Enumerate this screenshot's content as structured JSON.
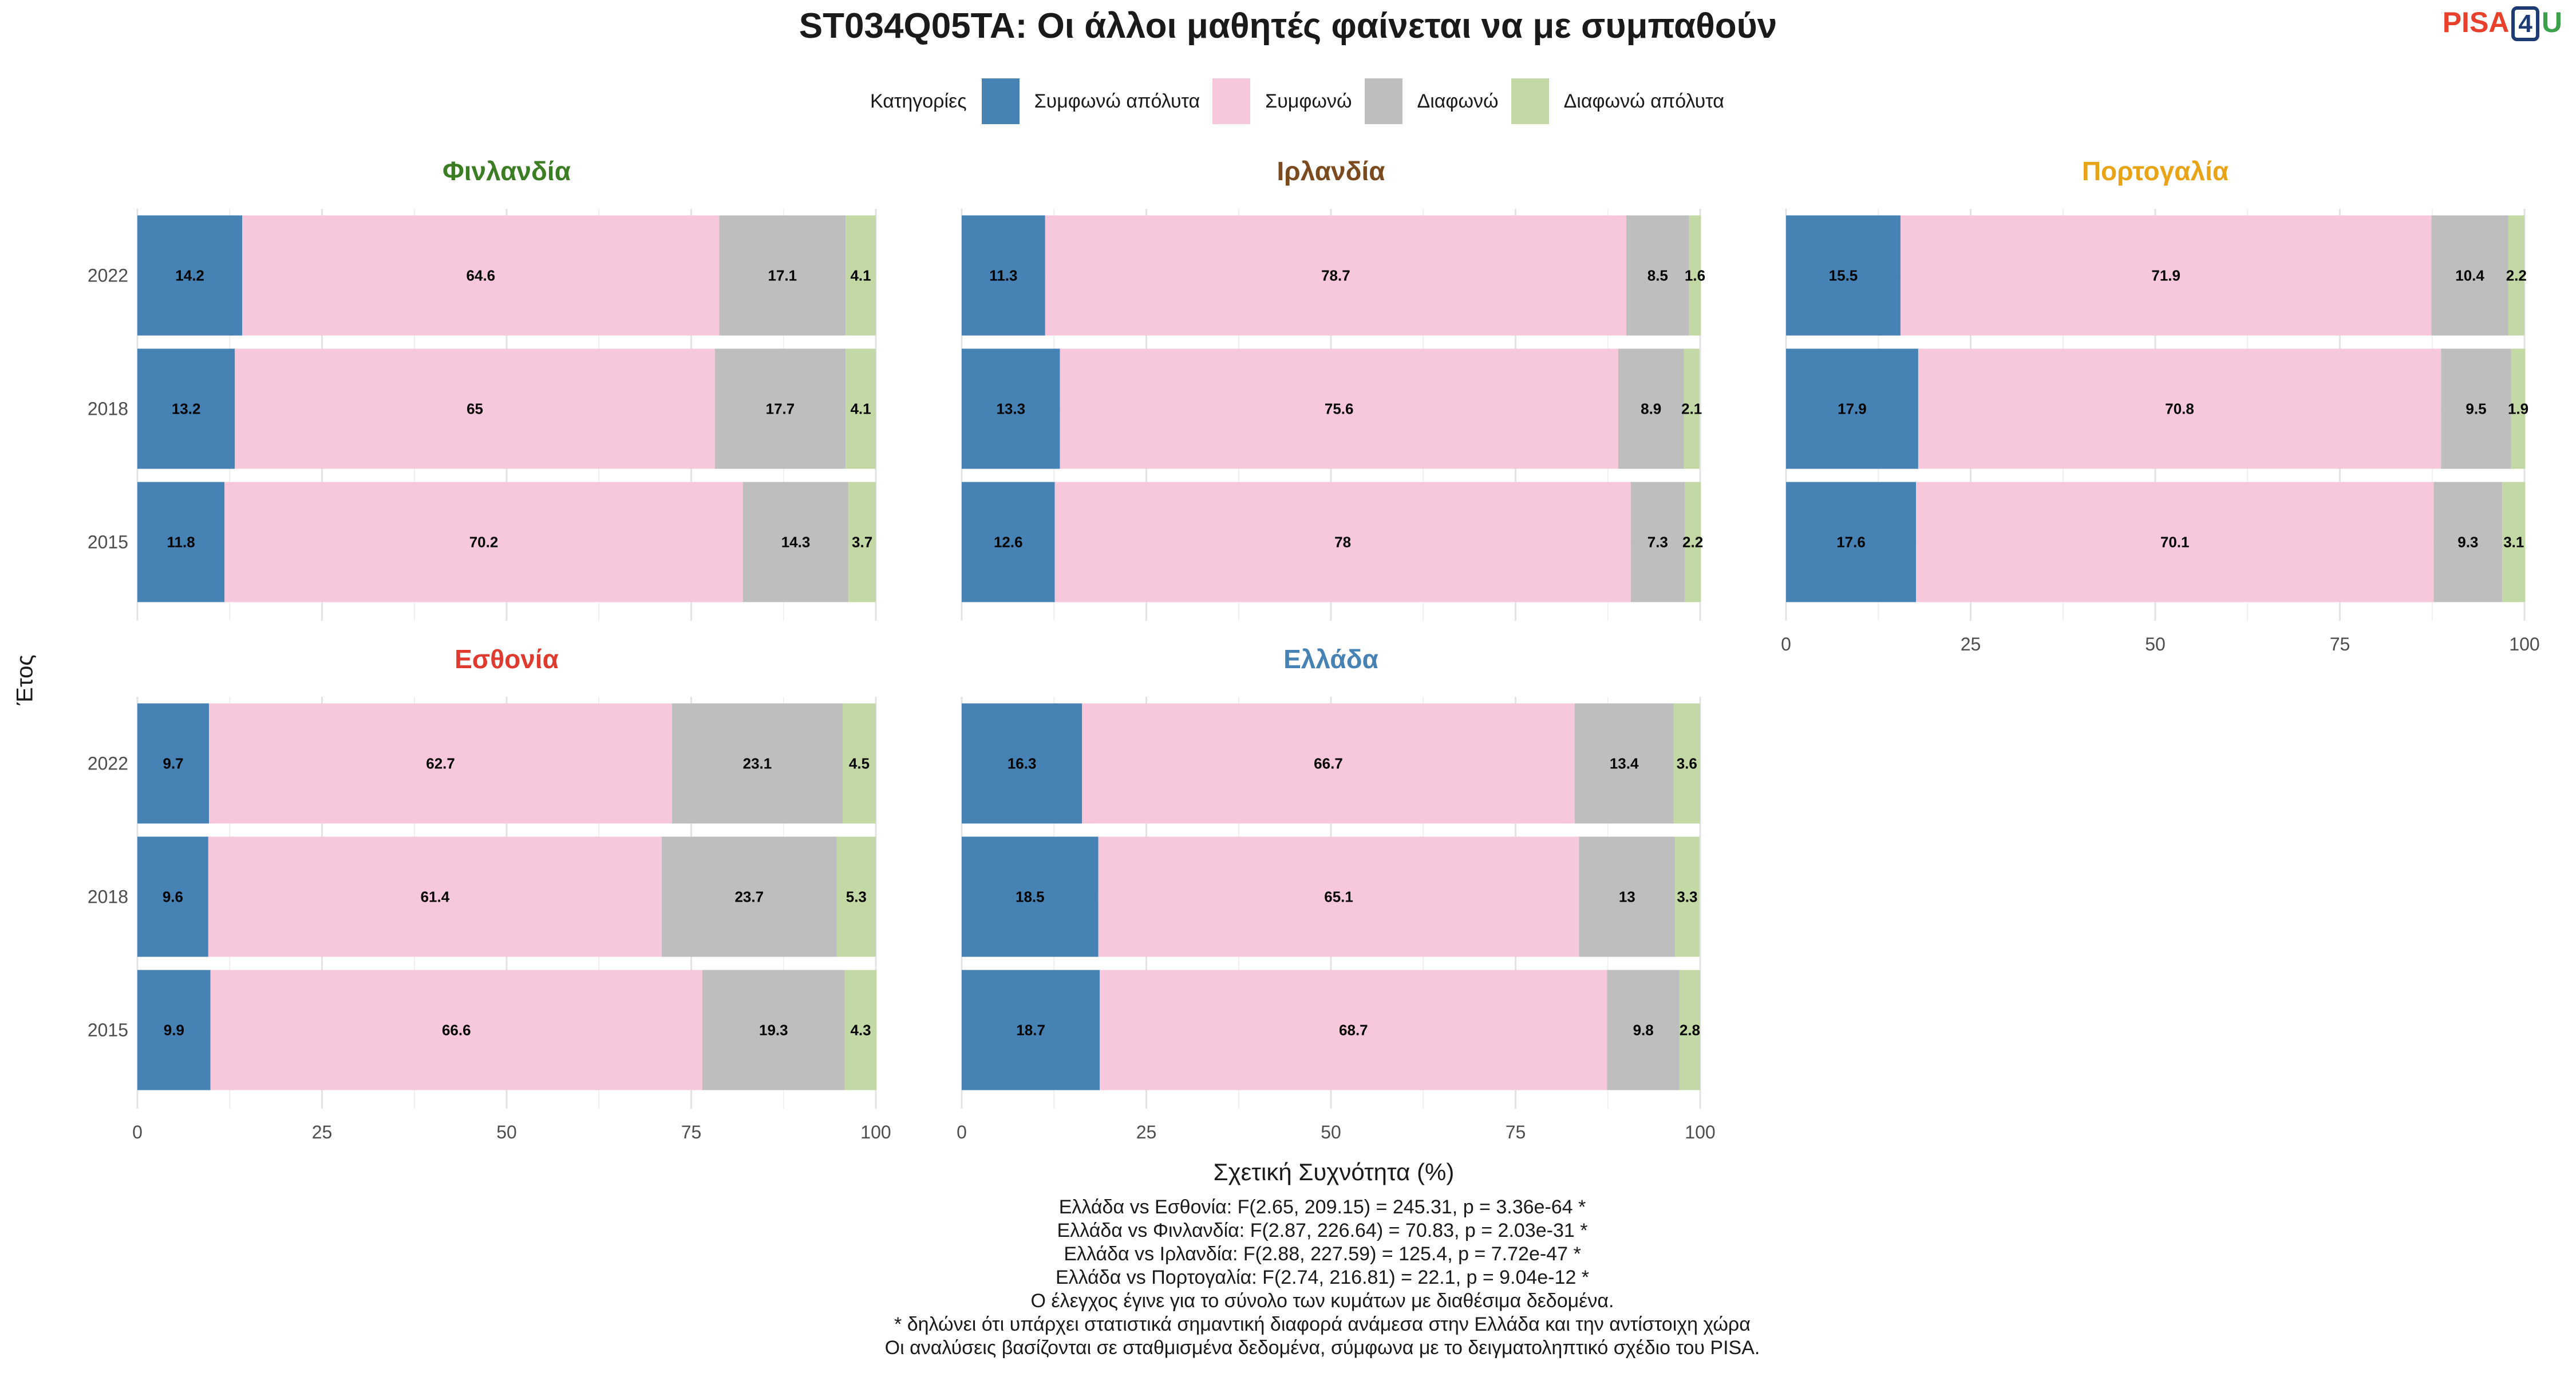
{
  "title": "ST034Q05TA: Οι άλλοι μαθητές φαίνεται να με συμπαθούν",
  "logo": {
    "part1": "PISA",
    "part2": "4",
    "part3": "U"
  },
  "legend": {
    "title": "Κατηγορίες",
    "items": [
      {
        "label": "Συμφωνώ απόλυτα",
        "color": "#4682B4"
      },
      {
        "label": "Συμφωνώ",
        "color": "#F7C8DC"
      },
      {
        "label": "Διαφωνώ",
        "color": "#BEBEBE"
      },
      {
        "label": "Διαφωνώ απόλυτα",
        "color": "#C3D9A5"
      }
    ]
  },
  "axes": {
    "ylabel": "Έτος",
    "xlabel": "Σχετική Συχνότητα (%)"
  },
  "caption": [
    "Ελλάδα vs Εσθονία: F(2.65, 209.15) = 245.31, p = 3.36e-64 *",
    "Ελλάδα vs Φινλανδία: F(2.87, 226.64) = 70.83, p = 2.03e-31 *",
    "Ελλάδα vs Ιρλανδία: F(2.88, 227.59) = 125.4, p = 7.72e-47 *",
    "Ελλάδα vs Πορτογαλία: F(2.74, 216.81) = 22.1, p = 9.04e-12 *",
    "Ο έλεγχος έγινε για το σύνολο των κυμάτων με διαθέσιμα δεδομένα.",
    "* δηλώνει ότι υπάρχει στατιστικά σημαντική διαφορά ανάμεσα στην Ελλάδα και την αντίστοιχη χώρα",
    "Οι αναλύσεις βασίζονται σε σταθμισμένα δεδομένα, σύμφωνα με το δειγματοληπτικό σχέδιο του PISA."
  ],
  "chart_data": {
    "type": "bar",
    "orientation": "horizontal",
    "stacked": true,
    "xlim": [
      0,
      100
    ],
    "x_ticks": [
      "0",
      "25",
      "50",
      "75",
      "100"
    ],
    "categories": [
      "2022",
      "2018",
      "2015"
    ],
    "series_names": [
      "Συμφωνώ απόλυτα",
      "Συμφωνώ",
      "Διαφωνώ",
      "Διαφωνώ απόλυτα"
    ],
    "facets": [
      {
        "country": "Φινλανδία",
        "title_color": "#3B7D23",
        "rows": [
          {
            "year": "2022",
            "values": [
              14.2,
              64.6,
              17.1,
              4.1
            ],
            "labels": [
              "14.2",
              "64.6",
              "17.1",
              "4.1"
            ]
          },
          {
            "year": "2018",
            "values": [
              13.2,
              65,
              17.7,
              4.1
            ],
            "labels": [
              "13.2",
              "65",
              "17.7",
              "4.1"
            ]
          },
          {
            "year": "2015",
            "values": [
              11.8,
              70.2,
              14.3,
              3.7
            ],
            "labels": [
              "11.8",
              "70.2",
              "14.3",
              "3.7"
            ]
          }
        ]
      },
      {
        "country": "Ιρλανδία",
        "title_color": "#7B4A1E",
        "rows": [
          {
            "year": "2022",
            "values": [
              11.3,
              78.7,
              8.5,
              1.6
            ],
            "labels": [
              "11.3",
              "78.7",
              "8.5",
              "1.6"
            ]
          },
          {
            "year": "2018",
            "values": [
              13.3,
              75.6,
              8.9,
              2.1
            ],
            "labels": [
              "13.3",
              "75.6",
              "8.9",
              "2.1"
            ]
          },
          {
            "year": "2015",
            "values": [
              12.6,
              78,
              7.3,
              2.2
            ],
            "labels": [
              "12.6",
              "78",
              "7.3",
              "2.2"
            ]
          }
        ]
      },
      {
        "country": "Πορτογαλία",
        "title_color": "#E8A317",
        "rows": [
          {
            "year": "2022",
            "values": [
              15.5,
              71.9,
              10.4,
              2.2
            ],
            "labels": [
              "15.5",
              "71.9",
              "10.4",
              "2.2"
            ]
          },
          {
            "year": "2018",
            "values": [
              17.9,
              70.8,
              9.5,
              1.9
            ],
            "labels": [
              "17.9",
              "70.8",
              "9.5",
              "1.9"
            ]
          },
          {
            "year": "2015",
            "values": [
              17.6,
              70.1,
              9.3,
              3.1
            ],
            "labels": [
              "17.6",
              "70.1",
              "9.3",
              "3.1"
            ]
          }
        ]
      },
      {
        "country": "Εσθονία",
        "title_color": "#E03A2F",
        "rows": [
          {
            "year": "2022",
            "values": [
              9.7,
              62.7,
              23.1,
              4.5
            ],
            "labels": [
              "9.7",
              "62.7",
              "23.1",
              "4.5"
            ]
          },
          {
            "year": "2018",
            "values": [
              9.6,
              61.4,
              23.7,
              5.3
            ],
            "labels": [
              "9.6",
              "61.4",
              "23.7",
              "5.3"
            ]
          },
          {
            "year": "2015",
            "values": [
              9.9,
              66.6,
              19.3,
              4.3
            ],
            "labels": [
              "9.9",
              "66.6",
              "19.3",
              "4.3"
            ]
          }
        ]
      },
      {
        "country": "Ελλάδα",
        "title_color": "#4682B4",
        "rows": [
          {
            "year": "2022",
            "values": [
              16.3,
              66.7,
              13.4,
              3.6
            ],
            "labels": [
              "16.3",
              "66.7",
              "13.4",
              "3.6"
            ]
          },
          {
            "year": "2018",
            "values": [
              18.5,
              65.1,
              13,
              3.3
            ],
            "labels": [
              "18.5",
              "65.1",
              "13",
              "3.3"
            ]
          },
          {
            "year": "2015",
            "values": [
              18.7,
              68.7,
              9.8,
              2.8
            ],
            "labels": [
              "18.7",
              "68.7",
              "9.8",
              "2.8"
            ]
          }
        ]
      }
    ]
  }
}
